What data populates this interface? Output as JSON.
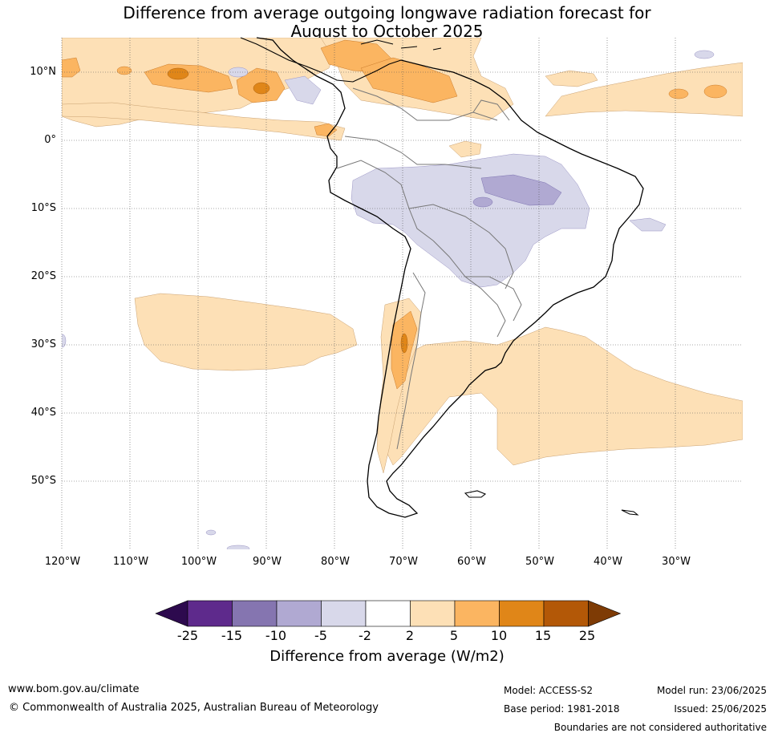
{
  "title": {
    "line1": "Difference from average outgoing longwave radiation forecast for",
    "line2": "August to October 2025"
  },
  "map": {
    "latitude_labels": [
      "10°N",
      "0°",
      "10°S",
      "20°S",
      "30°S",
      "40°S",
      "50°S"
    ],
    "longitude_labels": [
      "120°W",
      "110°W",
      "100°W",
      "90°W",
      "80°W",
      "70°W",
      "60°W",
      "50°W",
      "40°W",
      "30°W"
    ],
    "colors": {
      "coast": "#000000",
      "borders": "#777777",
      "grid": "#555555"
    }
  },
  "colorbar": {
    "tick_labels": [
      "-25",
      "-15",
      "-10",
      "-5",
      "-2",
      "2",
      "5",
      "10",
      "15",
      "25"
    ],
    "colors": [
      "#2d0a4e",
      "#5e2a8c",
      "#8575b0",
      "#b0a9d2",
      "#d8d8ea",
      "#ffffff",
      "#fde0b6",
      "#fbb561",
      "#e08618",
      "#b35807",
      "#7e3b05"
    ],
    "title": "Difference from average (W/m2)"
  },
  "footer": {
    "website": "www.bom.gov.au/climate",
    "copyright": "© Commonwealth of Australia 2025, Australian Bureau of Meteorology",
    "model": "Model: ACCESS-S2",
    "base_period": "Base period: 1981-2018",
    "model_run": "Model run: 23/06/2025",
    "issued": "Issued: 25/06/2025",
    "disclaimer": "Boundaries are not considered authoritative"
  }
}
